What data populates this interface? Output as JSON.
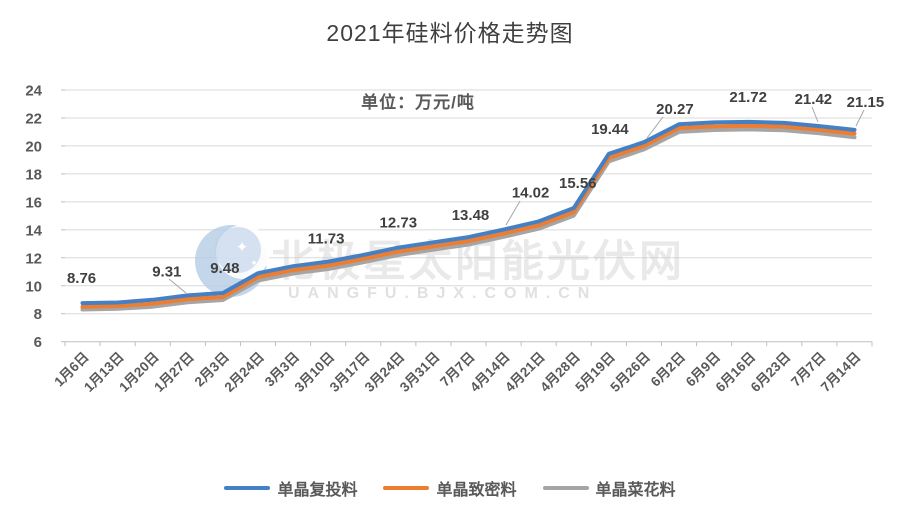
{
  "title": "2021年硅料价格走势图",
  "unit_note": "单位：万元/吨",
  "watermark": {
    "name": "北极星太阳能光伏网",
    "url": "UANGFU.BJX.COM.CN"
  },
  "chart_data": {
    "type": "line",
    "title": "2021年硅料价格走势图",
    "unit": "万元/吨",
    "grid": true,
    "legend_position": "bottom",
    "y_axis": {
      "min": 6,
      "max": 24,
      "step": 2,
      "ticks": [
        24,
        22,
        20,
        18,
        16,
        14,
        12,
        10,
        8,
        6
      ]
    },
    "categories": [
      "1月6日",
      "1月13日",
      "1月20日",
      "1月27日",
      "2月3日",
      "2月24日",
      "3月3日",
      "3月10日",
      "3月17日",
      "3月24日",
      "3月31日",
      "7月7日",
      "4月14日",
      "4月21日",
      "4月28日",
      "5月19日",
      "5月26日",
      "6月2日",
      "6月9日",
      "6月16日",
      "6月23日",
      "7月7日",
      "7月14日"
    ],
    "series": [
      {
        "name": "单晶复投料",
        "color": "#4580c4",
        "values": [
          8.76,
          8.8,
          9.0,
          9.31,
          9.48,
          10.9,
          11.4,
          11.73,
          12.2,
          12.73,
          13.1,
          13.48,
          14.02,
          14.6,
          15.56,
          19.44,
          20.27,
          21.55,
          21.68,
          21.72,
          21.65,
          21.42,
          21.15
        ]
      },
      {
        "name": "单晶致密料",
        "color": "#ed7d31",
        "values": [
          8.5,
          8.55,
          8.72,
          9.05,
          9.2,
          10.62,
          11.12,
          11.45,
          11.92,
          12.45,
          12.82,
          13.2,
          13.74,
          14.32,
          15.27,
          19.15,
          20.0,
          21.28,
          21.4,
          21.44,
          21.38,
          21.15,
          20.88
        ]
      },
      {
        "name": "单晶菜花料",
        "color": "#a5a5a5",
        "values": [
          8.3,
          8.35,
          8.5,
          8.82,
          8.98,
          10.38,
          10.88,
          11.2,
          11.68,
          12.2,
          12.58,
          12.95,
          13.5,
          14.08,
          15.02,
          18.9,
          19.75,
          21.0,
          21.14,
          21.18,
          21.12,
          20.9,
          20.62
        ]
      }
    ],
    "data_labels": [
      {
        "index": 0,
        "text": "8.76"
      },
      {
        "index": 3,
        "text": "9.31"
      },
      {
        "index": 4,
        "text": "9.48"
      },
      {
        "index": 7,
        "text": "11.73"
      },
      {
        "index": 9,
        "text": "12.73"
      },
      {
        "index": 11,
        "text": "13.48"
      },
      {
        "index": 12,
        "text": "14.02"
      },
      {
        "index": 14,
        "text": "15.56"
      },
      {
        "index": 15,
        "text": "19.44"
      },
      {
        "index": 16,
        "text": "20.27"
      },
      {
        "index": 19,
        "text": "21.72"
      },
      {
        "index": 21,
        "text": "21.42"
      },
      {
        "index": 22,
        "text": "21.15"
      }
    ]
  }
}
